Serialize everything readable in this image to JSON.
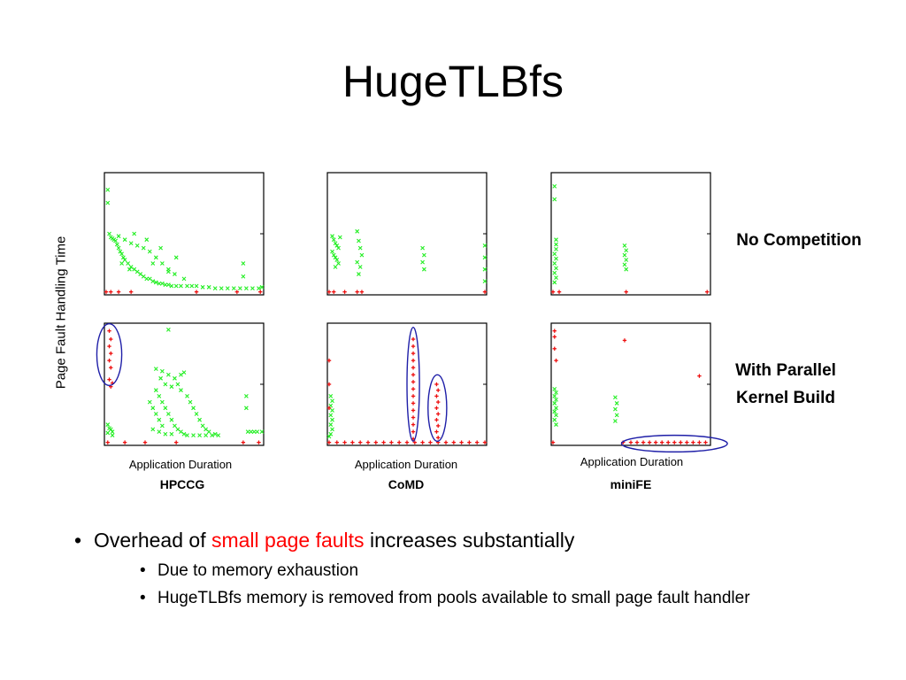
{
  "slide": {
    "title": "HugeTLBfs",
    "row_labels": {
      "top": "No Competition",
      "bottom_line1": "With Parallel",
      "bottom_line2": "Kernel Build"
    },
    "bullets": {
      "main_prefix": "Overhead of ",
      "main_highlight": "small page faults",
      "main_suffix": " increases substantially",
      "sub1": "Due to memory exhaustion",
      "sub2": "HugeTLBfs memory is removed from pools available to small page fault handler"
    },
    "colors": {
      "green": "#22ee22",
      "red": "#ee1111",
      "highlight_text": "#ff0000",
      "circle": "#1f1fa8"
    }
  },
  "chart_data": {
    "type": "scatter",
    "ylabel": "Page Fault Handling Time",
    "xlabel": "Application Duration",
    "benchmarks": [
      "HPCCG",
      "CoMD",
      "miniFE"
    ],
    "scenarios": [
      "No Competition",
      "With Parallel Kernel Build"
    ],
    "xlim": [
      0,
      100
    ],
    "ylim": [
      0,
      100
    ],
    "series_colors": {
      "green": "#22ee22",
      "red": "#ee1111"
    },
    "panels": [
      {
        "benchmark": "HPCCG",
        "scenario": "No Competition",
        "green": [
          [
            1,
            87
          ],
          [
            1,
            76
          ],
          [
            2,
            50
          ],
          [
            3,
            47
          ],
          [
            4,
            46
          ],
          [
            5,
            45
          ],
          [
            6,
            44
          ],
          [
            7,
            41
          ],
          [
            8,
            38
          ],
          [
            9,
            35
          ],
          [
            10,
            33
          ],
          [
            11,
            30
          ],
          [
            12,
            28
          ],
          [
            14,
            25
          ],
          [
            16,
            22
          ],
          [
            18,
            20
          ],
          [
            20,
            18
          ],
          [
            22,
            16
          ],
          [
            24,
            14
          ],
          [
            26,
            12
          ],
          [
            28,
            12
          ],
          [
            30,
            10
          ],
          [
            32,
            9
          ],
          [
            34,
            8
          ],
          [
            36,
            8
          ],
          [
            38,
            7
          ],
          [
            40,
            7
          ],
          [
            42,
            6
          ],
          [
            45,
            6
          ],
          [
            48,
            6
          ],
          [
            52,
            6
          ],
          [
            55,
            6
          ],
          [
            58,
            6
          ],
          [
            62,
            5
          ],
          [
            66,
            5
          ],
          [
            70,
            4
          ],
          [
            74,
            4
          ],
          [
            78,
            4
          ],
          [
            82,
            4
          ],
          [
            86,
            4
          ],
          [
            90,
            4
          ],
          [
            94,
            4
          ],
          [
            98,
            4
          ],
          [
            100,
            5
          ],
          [
            8,
            48
          ],
          [
            12,
            45
          ],
          [
            16,
            42
          ],
          [
            20,
            40
          ],
          [
            24,
            38
          ],
          [
            28,
            35
          ],
          [
            32,
            30
          ],
          [
            36,
            25
          ],
          [
            40,
            20
          ],
          [
            44,
            16
          ],
          [
            18,
            50
          ],
          [
            26,
            45
          ],
          [
            35,
            38
          ],
          [
            45,
            30
          ],
          [
            10,
            25
          ],
          [
            15,
            20
          ],
          [
            30,
            25
          ],
          [
            40,
            18
          ],
          [
            50,
            12
          ],
          [
            88,
            25
          ],
          [
            88,
            14
          ]
        ],
        "red": [
          [
            0,
            1
          ],
          [
            3,
            1
          ],
          [
            8,
            1
          ],
          [
            16,
            1
          ],
          [
            58,
            1
          ],
          [
            84,
            1
          ],
          [
            99,
            1
          ]
        ],
        "circles": []
      },
      {
        "benchmark": "CoMD",
        "scenario": "No Competition",
        "green": [
          [
            2,
            48
          ],
          [
            3,
            45
          ],
          [
            4,
            42
          ],
          [
            5,
            40
          ],
          [
            6,
            38
          ],
          [
            2,
            35
          ],
          [
            3,
            32
          ],
          [
            4,
            30
          ],
          [
            5,
            28
          ],
          [
            6,
            25
          ],
          [
            7,
            47
          ],
          [
            4,
            22
          ],
          [
            18,
            52
          ],
          [
            19,
            44
          ],
          [
            20,
            38
          ],
          [
            21,
            32
          ],
          [
            18,
            26
          ],
          [
            20,
            22
          ],
          [
            19,
            16
          ],
          [
            60,
            38
          ],
          [
            61,
            32
          ],
          [
            60,
            26
          ],
          [
            61,
            20
          ],
          [
            100,
            40
          ],
          [
            100,
            30
          ],
          [
            100,
            20
          ],
          [
            100,
            10
          ]
        ],
        "red": [
          [
            0,
            1
          ],
          [
            3,
            1
          ],
          [
            10,
            1
          ],
          [
            18,
            1
          ],
          [
            21,
            1
          ],
          [
            100,
            1
          ]
        ],
        "circles": []
      },
      {
        "benchmark": "miniFE",
        "scenario": "No Competition",
        "green": [
          [
            1,
            90
          ],
          [
            1,
            79
          ],
          [
            2,
            45
          ],
          [
            2,
            41
          ],
          [
            2,
            37
          ],
          [
            1,
            33
          ],
          [
            2,
            29
          ],
          [
            1,
            25
          ],
          [
            2,
            21
          ],
          [
            1,
            17
          ],
          [
            2,
            13
          ],
          [
            1,
            9
          ],
          [
            46,
            40
          ],
          [
            47,
            36
          ],
          [
            46,
            32
          ],
          [
            47,
            28
          ],
          [
            46,
            24
          ],
          [
            47,
            20
          ]
        ],
        "red": [
          [
            0,
            1
          ],
          [
            4,
            1
          ],
          [
            47,
            1
          ],
          [
            99,
            1
          ]
        ],
        "circles": []
      },
      {
        "benchmark": "HPCCG",
        "scenario": "With Parallel Kernel Build",
        "green": [
          [
            1,
            16
          ],
          [
            2,
            13
          ],
          [
            3,
            12
          ],
          [
            4,
            10
          ],
          [
            1,
            9
          ],
          [
            4,
            7
          ],
          [
            40,
            96
          ],
          [
            32,
            63
          ],
          [
            36,
            61
          ],
          [
            40,
            58
          ],
          [
            48,
            58
          ],
          [
            50,
            60
          ],
          [
            35,
            55
          ],
          [
            44,
            55
          ],
          [
            38,
            50
          ],
          [
            42,
            48
          ],
          [
            46,
            50
          ],
          [
            32,
            45
          ],
          [
            34,
            40
          ],
          [
            36,
            35
          ],
          [
            38,
            30
          ],
          [
            40,
            25
          ],
          [
            42,
            20
          ],
          [
            44,
            15
          ],
          [
            46,
            12
          ],
          [
            48,
            10
          ],
          [
            50,
            8
          ],
          [
            52,
            7
          ],
          [
            56,
            7
          ],
          [
            60,
            7
          ],
          [
            64,
            7
          ],
          [
            68,
            7
          ],
          [
            72,
            7
          ],
          [
            28,
            35
          ],
          [
            30,
            30
          ],
          [
            32,
            25
          ],
          [
            34,
            20
          ],
          [
            36,
            15
          ],
          [
            30,
            12
          ],
          [
            34,
            10
          ],
          [
            38,
            8
          ],
          [
            42,
            8
          ],
          [
            48,
            45
          ],
          [
            52,
            40
          ],
          [
            54,
            35
          ],
          [
            56,
            30
          ],
          [
            58,
            25
          ],
          [
            60,
            20
          ],
          [
            62,
            15
          ],
          [
            64,
            12
          ],
          [
            66,
            10
          ],
          [
            70,
            8
          ],
          [
            90,
            40
          ],
          [
            90,
            30
          ],
          [
            91,
            10
          ],
          [
            93,
            10
          ],
          [
            95,
            10
          ],
          [
            97,
            10
          ],
          [
            100,
            10
          ]
        ],
        "red": [
          [
            2,
            95
          ],
          [
            3,
            88
          ],
          [
            2,
            82
          ],
          [
            3,
            76
          ],
          [
            2,
            70
          ],
          [
            3,
            64
          ],
          [
            2,
            54
          ],
          [
            4,
            51
          ],
          [
            3,
            48
          ],
          [
            1,
            1
          ],
          [
            12,
            1
          ],
          [
            25,
            1
          ],
          [
            45,
            1
          ],
          [
            88,
            1
          ],
          [
            98,
            1
          ]
        ],
        "circles": [
          {
            "cx": 2,
            "cy": 75,
            "rx": 8,
            "ry": 26
          }
        ]
      },
      {
        "benchmark": "CoMD",
        "scenario": "With Parallel Kernel Build",
        "green": [
          [
            1,
            40
          ],
          [
            2,
            36
          ],
          [
            1,
            32
          ],
          [
            2,
            28
          ],
          [
            1,
            24
          ],
          [
            2,
            20
          ],
          [
            1,
            16
          ],
          [
            2,
            12
          ],
          [
            1,
            8
          ],
          [
            0,
            6
          ]
        ],
        "red": [
          [
            0,
            1
          ],
          [
            5,
            1
          ],
          [
            10,
            1
          ],
          [
            15,
            1
          ],
          [
            20,
            1
          ],
          [
            25,
            1
          ],
          [
            30,
            1
          ],
          [
            35,
            1
          ],
          [
            40,
            1
          ],
          [
            45,
            1
          ],
          [
            50,
            1
          ],
          [
            55,
            1
          ],
          [
            60,
            1
          ],
          [
            65,
            1
          ],
          [
            70,
            1
          ],
          [
            75,
            1
          ],
          [
            80,
            1
          ],
          [
            85,
            1
          ],
          [
            90,
            1
          ],
          [
            95,
            1
          ],
          [
            100,
            1
          ],
          [
            54,
            88
          ],
          [
            54,
            82
          ],
          [
            54,
            76
          ],
          [
            54,
            70
          ],
          [
            54,
            64
          ],
          [
            54,
            58
          ],
          [
            54,
            52
          ],
          [
            54,
            46
          ],
          [
            54,
            40
          ],
          [
            54,
            34
          ],
          [
            54,
            28
          ],
          [
            54,
            22
          ],
          [
            54,
            16
          ],
          [
            54,
            10
          ],
          [
            54,
            4
          ],
          [
            69,
            50
          ],
          [
            70,
            45
          ],
          [
            69,
            40
          ],
          [
            70,
            35
          ],
          [
            69,
            30
          ],
          [
            70,
            25
          ],
          [
            69,
            20
          ],
          [
            70,
            15
          ],
          [
            69,
            10
          ],
          [
            70,
            5
          ],
          [
            0,
            70
          ],
          [
            0,
            50
          ],
          [
            0,
            30
          ]
        ],
        "circles": [
          {
            "cx": 54,
            "cy": 50,
            "rx": 4,
            "ry": 48
          },
          {
            "cx": 69.5,
            "cy": 30,
            "rx": 6,
            "ry": 28
          }
        ]
      },
      {
        "benchmark": "miniFE",
        "scenario": "With Parallel Kernel Build",
        "green": [
          [
            1,
            46
          ],
          [
            2,
            43
          ],
          [
            1,
            40
          ],
          [
            2,
            37
          ],
          [
            1,
            34
          ],
          [
            2,
            30
          ],
          [
            1,
            27
          ],
          [
            2,
            24
          ],
          [
            1,
            20
          ],
          [
            2,
            16
          ],
          [
            40,
            39
          ],
          [
            41,
            34
          ],
          [
            40,
            29
          ],
          [
            41,
            24
          ],
          [
            40,
            19
          ]
        ],
        "red": [
          [
            0,
            1
          ],
          [
            1,
            95
          ],
          [
            1,
            90
          ],
          [
            1,
            80
          ],
          [
            2,
            70
          ],
          [
            46,
            87
          ],
          [
            94,
            57
          ],
          [
            45,
            1
          ],
          [
            50,
            1
          ],
          [
            54,
            1
          ],
          [
            58,
            1
          ],
          [
            62,
            1
          ],
          [
            66,
            1
          ],
          [
            70,
            1
          ],
          [
            74,
            1
          ],
          [
            78,
            1
          ],
          [
            82,
            1
          ],
          [
            86,
            1
          ],
          [
            90,
            1
          ],
          [
            94,
            1
          ],
          [
            98,
            1
          ]
        ],
        "circles": [
          {
            "cx": 78,
            "cy": 0,
            "rx": 34,
            "ry": 7
          }
        ]
      }
    ]
  }
}
